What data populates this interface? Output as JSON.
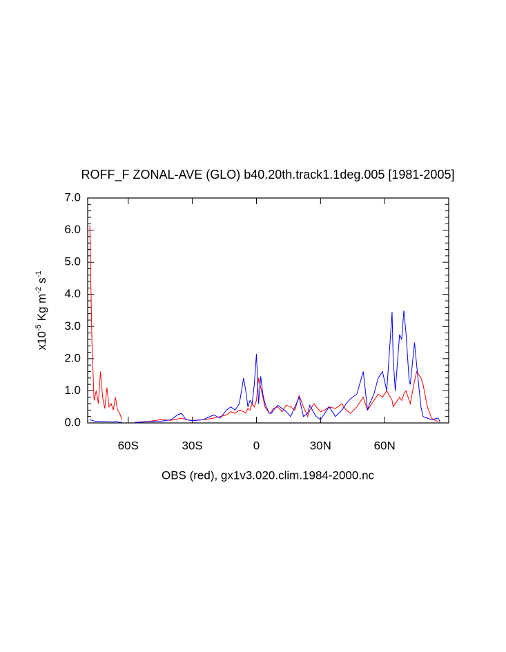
{
  "chart_data": {
    "type": "line",
    "title": "ROFF_F ZONAL-AVE (GLO) b40.20th.track1.1deg.005 [1981-2005]",
    "xlabel": "OBS (red), gx1v3.020.clim.1984-2000.nc",
    "ylabel_parts": [
      "x10",
      "-5",
      "Kg m",
      "-2",
      "s",
      "-1"
    ],
    "x": [
      -78,
      -77,
      -76,
      -75,
      -74,
      -73,
      -72,
      -71,
      -70,
      -69,
      -68,
      -67,
      -66,
      -65,
      -64,
      -63,
      -60,
      -57,
      -50,
      -45,
      -40,
      -37,
      -35,
      -33,
      -30,
      -25,
      -20,
      -17,
      -14,
      -12,
      -10,
      -8,
      -6,
      -5,
      -4,
      -3,
      -2,
      -1,
      0,
      1,
      2,
      3,
      4,
      5,
      6,
      7,
      8,
      10,
      12,
      14,
      16,
      18,
      20,
      22,
      24,
      25,
      27,
      28,
      30,
      32,
      34,
      37,
      40,
      42,
      44,
      47,
      50,
      52,
      53,
      55,
      57,
      59,
      61,
      63.5,
      64,
      65,
      67,
      68,
      69,
      70,
      71.5,
      72,
      74,
      75,
      77,
      78,
      80,
      82,
      83,
      85,
      86
    ],
    "series": [
      {
        "name": "OBS",
        "color": "#ff0000",
        "values": [
          6.15,
          2.5,
          0.7,
          1.0,
          0.6,
          1.6,
          0.8,
          0.45,
          1.1,
          0.5,
          0.6,
          0.4,
          0.8,
          0.4,
          0.3,
          0.1,
          null,
          0.02,
          0.05,
          0.1,
          0.08,
          0.12,
          0.15,
          0.1,
          0.08,
          0.1,
          0.15,
          0.2,
          0.25,
          0.35,
          0.3,
          0.4,
          0.35,
          0.3,
          0.45,
          0.4,
          0.6,
          0.5,
          0.7,
          1.4,
          1.1,
          0.8,
          0.5,
          0.4,
          0.3,
          0.35,
          0.45,
          0.5,
          0.35,
          0.55,
          0.5,
          0.4,
          0.85,
          0.5,
          0.2,
          0.4,
          0.6,
          0.5,
          0.35,
          0.4,
          0.5,
          0.45,
          0.6,
          0.4,
          0.3,
          0.5,
          0.8,
          0.4,
          0.5,
          0.7,
          0.9,
          0.8,
          1.0,
          0.7,
          0.5,
          0.6,
          0.8,
          0.7,
          0.9,
          1.0,
          0.7,
          0.6,
          1.3,
          1.6,
          1.4,
          1.2,
          0.5,
          0.15,
          0.1,
          0.05,
          null
        ]
      },
      {
        "color": "#0000ff",
        "values": [
          0.1,
          0.08,
          0.06,
          0.05,
          0.05,
          0.05,
          0.04,
          0.04,
          0.04,
          0.04,
          0.03,
          0.03,
          0.05,
          0.03,
          0.02,
          0.02,
          null,
          0.01,
          0.04,
          0.05,
          0.1,
          0.25,
          0.3,
          0.1,
          0.07,
          0.1,
          0.25,
          0.15,
          0.4,
          0.5,
          0.4,
          0.6,
          1.4,
          1.0,
          0.5,
          0.7,
          0.6,
          1.2,
          2.15,
          0.6,
          1.45,
          0.9,
          0.6,
          0.45,
          0.3,
          0.3,
          0.4,
          0.55,
          0.45,
          0.35,
          0.2,
          0.5,
          0.8,
          0.2,
          0.3,
          0.55,
          0.3,
          0.2,
          0.1,
          0.3,
          0.5,
          0.2,
          0.4,
          0.6,
          0.75,
          0.9,
          1.6,
          0.4,
          0.6,
          0.9,
          1.4,
          1.6,
          1.0,
          3.45,
          2.0,
          1.0,
          2.75,
          2.6,
          3.5,
          2.8,
          1.3,
          1.2,
          2.5,
          1.8,
          0.5,
          0.2,
          0.15,
          0.1,
          0.12,
          0.15,
          0.02
        ]
      }
    ],
    "xlim": [
      -79,
      90
    ],
    "xticks": [
      {
        "value": -60,
        "label": "60S"
      },
      {
        "value": -30,
        "label": "30S"
      },
      0,
      {
        "value": 30,
        "label": "30N"
      },
      {
        "value": 60,
        "label": "60N"
      }
    ],
    "ylim": [
      0,
      7
    ],
    "yticks": [
      {
        "value": 0,
        "label": "0.0"
      },
      {
        "value": 1,
        "label": "1.0"
      },
      {
        "value": 2,
        "label": "2.0"
      },
      {
        "value": 3,
        "label": "3.0"
      },
      {
        "value": 4,
        "label": "4.0"
      },
      {
        "value": 5,
        "label": "5.0"
      },
      {
        "value": 6,
        "label": "6.0"
      },
      {
        "value": 7,
        "label": "7.0"
      }
    ]
  }
}
